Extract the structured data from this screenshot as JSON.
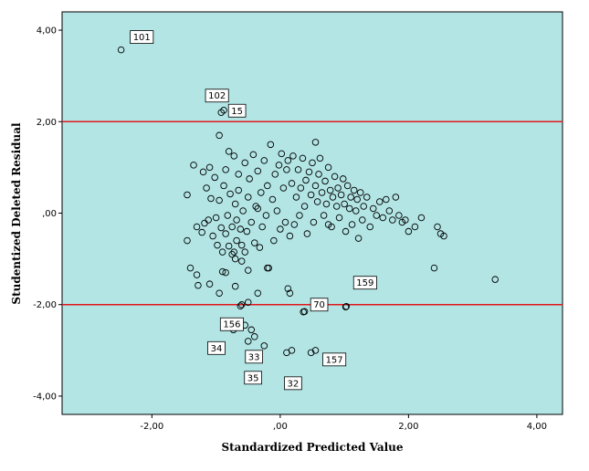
{
  "chart_data": {
    "type": "scatter",
    "xlabel": "Standardized Predicted Value",
    "ylabel": "Studentized Deleted Residual",
    "xlim": [
      -3.4,
      4.4
    ],
    "ylim": [
      -4.4,
      4.4
    ],
    "xticks": [
      {
        "value": -2,
        "label": "-2,00"
      },
      {
        "value": 0,
        "label": ",00"
      },
      {
        "value": 2,
        "label": "2,00"
      },
      {
        "value": 4,
        "label": "4,00"
      }
    ],
    "yticks": [
      {
        "value": 4,
        "label": "4,00"
      },
      {
        "value": 2,
        "label": "2,00"
      },
      {
        "value": 0,
        "label": ",00"
      },
      {
        "value": -2,
        "label": "-2,00"
      },
      {
        "value": -4,
        "label": "-4,00"
      }
    ],
    "reference_lines": [
      2,
      -2
    ],
    "grid": false,
    "colors": {
      "plot_background": "#b3e5e5",
      "reference_line": "#e0181b",
      "marker_stroke": "#000000"
    },
    "labeled_points": [
      {
        "label": "101",
        "x": -2.48,
        "y": 3.57
      },
      {
        "label": "102",
        "x": -0.88,
        "y": 2.25
      },
      {
        "label": "15",
        "x": -0.92,
        "y": 2.2
      },
      {
        "label": "159",
        "x": 1.03,
        "y": -2.04
      },
      {
        "label": "70",
        "x": 0.36,
        "y": -2.16
      },
      {
        "label": "156",
        "x": -0.62,
        "y": -2.03
      },
      {
        "label": "157",
        "x": 0.55,
        "y": -3.0
      },
      {
        "label": "34",
        "x": -0.73,
        "y": -2.55
      },
      {
        "label": "33",
        "x": -0.4,
        "y": -2.7
      },
      {
        "label": "35",
        "x": -0.5,
        "y": -2.8
      },
      {
        "label": "32",
        "x": 0.18,
        "y": -3.0
      }
    ],
    "points": [
      [
        -1.45,
        0.4
      ],
      [
        -1.45,
        -0.6
      ],
      [
        -1.35,
        1.05
      ],
      [
        -1.3,
        -0.3
      ],
      [
        -1.28,
        -1.58
      ],
      [
        -1.22,
        -0.42
      ],
      [
        -1.2,
        0.9
      ],
      [
        -1.18,
        -0.22
      ],
      [
        -1.15,
        0.55
      ],
      [
        -1.12,
        -0.15
      ],
      [
        -1.1,
        1.0
      ],
      [
        -1.08,
        0.32
      ],
      [
        -1.05,
        -0.5
      ],
      [
        -1.02,
        0.78
      ],
      [
        -1.0,
        -0.1
      ],
      [
        -0.98,
        -0.7
      ],
      [
        -0.95,
        0.28
      ],
      [
        -0.95,
        1.7
      ],
      [
        -0.92,
        -0.32
      ],
      [
        -0.9,
        -1.28
      ],
      [
        -0.9,
        -0.85
      ],
      [
        -0.88,
        0.6
      ],
      [
        -0.85,
        -0.45
      ],
      [
        -0.85,
        0.95
      ],
      [
        -0.82,
        -0.05
      ],
      [
        -0.8,
        -0.72
      ],
      [
        -0.8,
        1.35
      ],
      [
        -0.78,
        0.42
      ],
      [
        -0.75,
        -0.9
      ],
      [
        -0.75,
        -0.3
      ],
      [
        -0.72,
        -0.85
      ],
      [
        -0.72,
        1.25
      ],
      [
        -0.7,
        -1.0
      ],
      [
        -0.7,
        0.2
      ],
      [
        -0.68,
        -0.6
      ],
      [
        -0.68,
        -0.15
      ],
      [
        -0.65,
        0.5
      ],
      [
        -0.65,
        0.85
      ],
      [
        -0.62,
        -0.35
      ],
      [
        -0.6,
        -1.05
      ],
      [
        -0.6,
        -0.7
      ],
      [
        -0.58,
        0.05
      ],
      [
        -0.55,
        1.1
      ],
      [
        -0.55,
        -0.85
      ],
      [
        -0.52,
        -0.4
      ],
      [
        -0.5,
        0.35
      ],
      [
        -0.5,
        -1.25
      ],
      [
        -0.48,
        0.75
      ],
      [
        -0.45,
        -0.2
      ],
      [
        -0.42,
        1.28
      ],
      [
        -0.4,
        -0.65
      ],
      [
        -0.38,
        0.15
      ],
      [
        -0.35,
        0.92
      ],
      [
        -0.32,
        -0.75
      ],
      [
        -0.3,
        0.45
      ],
      [
        -0.28,
        -0.3
      ],
      [
        -0.25,
        1.15
      ],
      [
        -0.22,
        -0.05
      ],
      [
        -0.2,
        0.6
      ],
      [
        -0.18,
        -1.2
      ],
      [
        -0.15,
        1.5
      ],
      [
        -0.12,
        0.3
      ],
      [
        -0.1,
        -0.6
      ],
      [
        -0.08,
        0.85
      ],
      [
        -0.05,
        0.05
      ],
      [
        -0.02,
        1.05
      ],
      [
        0.0,
        -0.35
      ],
      [
        0.02,
        1.3
      ],
      [
        0.05,
        0.55
      ],
      [
        0.08,
        -0.2
      ],
      [
        0.1,
        0.95
      ],
      [
        0.12,
        1.15
      ],
      [
        0.15,
        -0.5
      ],
      [
        0.18,
        0.65
      ],
      [
        0.2,
        1.25
      ],
      [
        0.22,
        -0.25
      ],
      [
        0.25,
        0.35
      ],
      [
        0.28,
        0.95
      ],
      [
        0.3,
        -0.05
      ],
      [
        0.32,
        0.55
      ],
      [
        0.35,
        1.2
      ],
      [
        0.38,
        0.15
      ],
      [
        0.4,
        0.72
      ],
      [
        0.42,
        -0.45
      ],
      [
        0.45,
        0.9
      ],
      [
        0.48,
        0.4
      ],
      [
        0.5,
        1.1
      ],
      [
        0.52,
        -0.2
      ],
      [
        0.55,
        0.6
      ],
      [
        0.58,
        0.25
      ],
      [
        0.6,
        0.85
      ],
      [
        0.62,
        1.2
      ],
      [
        0.65,
        0.45
      ],
      [
        0.68,
        -0.05
      ],
      [
        0.7,
        0.7
      ],
      [
        0.72,
        0.2
      ],
      [
        0.75,
        1.0
      ],
      [
        0.78,
        0.5
      ],
      [
        0.8,
        -0.3
      ],
      [
        0.82,
        0.35
      ],
      [
        0.85,
        0.8
      ],
      [
        0.88,
        0.15
      ],
      [
        0.9,
        0.55
      ],
      [
        0.92,
        -0.1
      ],
      [
        0.95,
        0.4
      ],
      [
        0.98,
        0.75
      ],
      [
        1.0,
        0.2
      ],
      [
        1.02,
        -0.4
      ],
      [
        1.05,
        0.6
      ],
      [
        1.08,
        0.1
      ],
      [
        1.1,
        0.35
      ],
      [
        1.12,
        -0.25
      ],
      [
        1.15,
        0.5
      ],
      [
        1.18,
        0.05
      ],
      [
        1.2,
        0.3
      ],
      [
        1.22,
        -0.55
      ],
      [
        1.25,
        0.45
      ],
      [
        1.28,
        -0.15
      ],
      [
        1.3,
        0.15
      ],
      [
        1.35,
        0.35
      ],
      [
        1.4,
        -0.3
      ],
      [
        1.45,
        0.1
      ],
      [
        1.5,
        -0.05
      ],
      [
        1.55,
        0.25
      ],
      [
        1.6,
        -0.1
      ],
      [
        1.65,
        0.3
      ],
      [
        1.7,
        0.05
      ],
      [
        1.75,
        -0.15
      ],
      [
        1.8,
        0.35
      ],
      [
        1.85,
        -0.05
      ],
      [
        1.9,
        -0.2
      ],
      [
        1.95,
        -0.15
      ],
      [
        2.0,
        -0.4
      ],
      [
        2.1,
        -0.3
      ],
      [
        2.2,
        -0.1
      ],
      [
        2.4,
        -1.2
      ],
      [
        2.45,
        -0.3
      ],
      [
        2.5,
        -0.45
      ],
      [
        2.55,
        -0.5
      ],
      [
        3.35,
        -1.45
      ],
      [
        -1.4,
        -1.2
      ],
      [
        -1.3,
        -1.35
      ],
      [
        -1.1,
        -1.55
      ],
      [
        -0.95,
        -1.75
      ],
      [
        -0.85,
        -1.3
      ],
      [
        -0.7,
        -1.6
      ],
      [
        -0.6,
        -2.0
      ],
      [
        -0.55,
        -2.45
      ],
      [
        -0.5,
        -1.95
      ],
      [
        -0.45,
        -2.55
      ],
      [
        -0.35,
        -1.75
      ],
      [
        -0.25,
        -2.9
      ],
      [
        -0.2,
        -1.2
      ],
      [
        0.12,
        -1.65
      ],
      [
        0.15,
        -1.75
      ],
      [
        0.38,
        -2.15
      ],
      [
        0.48,
        -3.05
      ],
      [
        0.1,
        -3.05
      ],
      [
        1.02,
        -2.05
      ],
      [
        0.75,
        -0.25
      ],
      [
        -0.35,
        0.1
      ],
      [
        0.55,
        1.55
      ]
    ]
  }
}
